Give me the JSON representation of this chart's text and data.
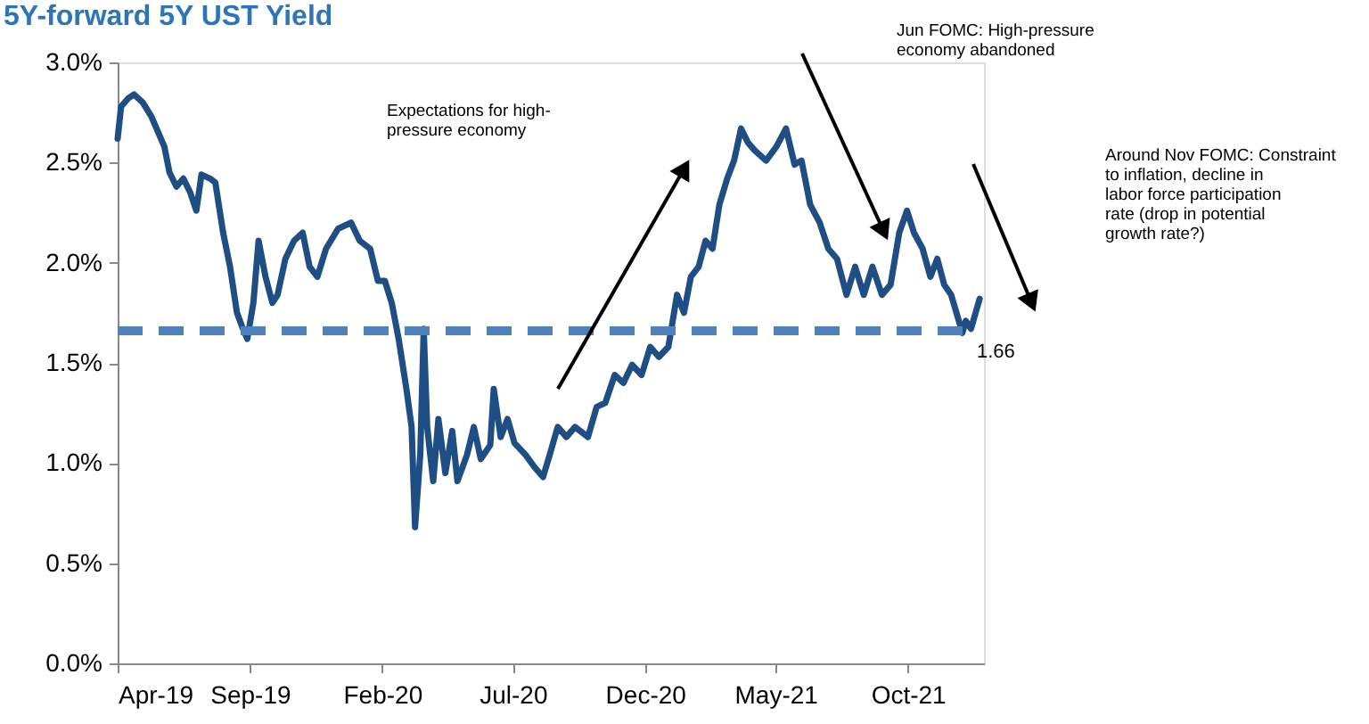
{
  "chart_data": {
    "type": "line",
    "title": "5Y-forward 5Y UST Yield",
    "x": [
      "2019-04-01",
      "2019-04-05",
      "2019-04-13",
      "2019-04-20",
      "2019-04-30",
      "2019-05-10",
      "2019-05-16",
      "2019-05-25",
      "2019-05-31",
      "2019-06-08",
      "2019-06-16",
      "2019-06-24",
      "2019-07-01",
      "2019-07-07",
      "2019-07-17",
      "2019-07-23",
      "2019-08-01",
      "2019-08-09",
      "2019-08-17",
      "2019-08-23",
      "2019-08-29",
      "2019-09-05",
      "2019-09-11",
      "2019-09-19",
      "2019-09-27",
      "2019-10-03",
      "2019-10-12",
      "2019-10-22",
      "2019-11-01",
      "2019-11-09",
      "2019-11-18",
      "2019-11-28",
      "2019-12-12",
      "2019-12-27",
      "2020-01-06",
      "2020-01-18",
      "2020-01-27",
      "2020-02-04",
      "2020-02-12",
      "2020-02-20",
      "2020-02-29",
      "2020-03-06",
      "2020-03-10",
      "2020-03-16",
      "2020-03-20",
      "2020-03-24",
      "2020-03-31",
      "2020-04-06",
      "2020-04-14",
      "2020-04-22",
      "2020-04-28",
      "2020-05-09",
      "2020-05-17",
      "2020-05-25",
      "2020-06-05",
      "2020-06-09",
      "2020-06-17",
      "2020-06-25",
      "2020-07-03",
      "2020-07-16",
      "2020-07-26",
      "2020-08-05",
      "2020-08-12",
      "2020-08-22",
      "2020-09-01",
      "2020-09-11",
      "2020-09-26",
      "2020-10-06",
      "2020-10-16",
      "2020-10-27",
      "2020-11-06",
      "2020-11-16",
      "2020-11-27",
      "2020-12-07",
      "2020-12-17",
      "2020-12-28",
      "2021-01-07",
      "2021-01-15",
      "2021-01-23",
      "2021-02-01",
      "2021-02-09",
      "2021-02-17",
      "2021-02-25",
      "2021-03-06",
      "2021-03-14",
      "2021-03-22",
      "2021-03-30",
      "2021-04-07",
      "2021-04-20",
      "2021-05-02",
      "2021-05-13",
      "2021-05-23",
      "2021-05-31",
      "2021-06-10",
      "2021-06-21",
      "2021-07-01",
      "2021-07-11",
      "2021-07-22",
      "2021-08-01",
      "2021-08-11",
      "2021-08-21",
      "2021-09-01",
      "2021-09-11",
      "2021-09-21",
      "2021-09-30",
      "2021-10-08",
      "2021-10-18",
      "2021-10-27",
      "2021-11-04",
      "2021-11-12",
      "2021-11-20",
      "2021-12-03",
      "2021-12-07",
      "2021-12-13",
      "2021-12-23"
    ],
    "series": [
      {
        "color": "#1f4e84",
        "values": [
          2.62,
          2.78,
          2.82,
          2.84,
          2.8,
          2.73,
          2.67,
          2.58,
          2.45,
          2.38,
          2.42,
          2.35,
          2.26,
          2.44,
          2.42,
          2.4,
          2.15,
          1.98,
          1.75,
          1.68,
          1.62,
          1.8,
          2.11,
          1.93,
          1.8,
          1.84,
          2.02,
          2.11,
          2.15,
          1.98,
          1.93,
          2.07,
          2.17,
          2.2,
          2.11,
          2.07,
          1.91,
          1.91,
          1.8,
          1.62,
          1.37,
          1.18,
          0.68,
          1.04,
          1.67,
          1.18,
          0.91,
          1.22,
          0.95,
          1.16,
          0.91,
          1.04,
          1.18,
          1.02,
          1.09,
          1.37,
          1.13,
          1.22,
          1.1,
          1.04,
          0.98,
          0.93,
          1.03,
          1.18,
          1.13,
          1.18,
          1.13,
          1.28,
          1.3,
          1.44,
          1.4,
          1.49,
          1.44,
          1.58,
          1.53,
          1.58,
          1.84,
          1.75,
          1.93,
          1.98,
          2.11,
          2.07,
          2.29,
          2.42,
          2.51,
          2.67,
          2.6,
          2.56,
          2.51,
          2.58,
          2.67,
          2.49,
          2.51,
          2.29,
          2.2,
          2.07,
          2.02,
          1.84,
          1.98,
          1.84,
          1.98,
          1.84,
          1.89,
          2.15,
          2.26,
          2.15,
          2.07,
          1.93,
          2.02,
          1.89,
          1.84,
          1.65,
          1.71,
          1.67,
          1.82
        ]
      }
    ],
    "line_style": "solid",
    "xlim": [
      "2019-04-01",
      "2021-12-28"
    ],
    "xticks": [
      {
        "value": "2019-04-01",
        "label": "Apr-19"
      },
      {
        "value": "2019-09-01",
        "label": "Sep-19"
      },
      {
        "value": "2020-02-01",
        "label": "Feb-20"
      },
      {
        "value": "2020-07-01",
        "label": "Jul-20"
      },
      {
        "value": "2020-12-01",
        "label": "Dec-20"
      },
      {
        "value": "2021-05-01",
        "label": "May-21"
      },
      {
        "value": "2021-10-01",
        "label": "Oct-21"
      }
    ],
    "ylim": [
      0,
      3
    ],
    "yticks": [
      {
        "value": 0,
        "label": "0.0%"
      },
      {
        "value": 0.5,
        "label": "0.5%"
      },
      {
        "value": 1,
        "label": "1.0%"
      },
      {
        "value": 1.5,
        "label": "1.5%"
      },
      {
        "value": 2,
        "label": "2.0%"
      },
      {
        "value": 2.5,
        "label": "2.5%"
      },
      {
        "value": 3,
        "label": "3.0%"
      }
    ],
    "grid": false,
    "ref_lines": [
      {
        "axis": "y",
        "value": 1.66,
        "label": "1.66",
        "color": "#4f81bd",
        "line_style": "dashed"
      }
    ],
    "annotations": [
      "Expectations for high-pressure economy",
      "Jun FOMC: High-pressure economy abandoned",
      "Around Nov FOMC: Constraint to inflation, decline in labor force participation rate (drop in potential growth rate?)"
    ]
  }
}
